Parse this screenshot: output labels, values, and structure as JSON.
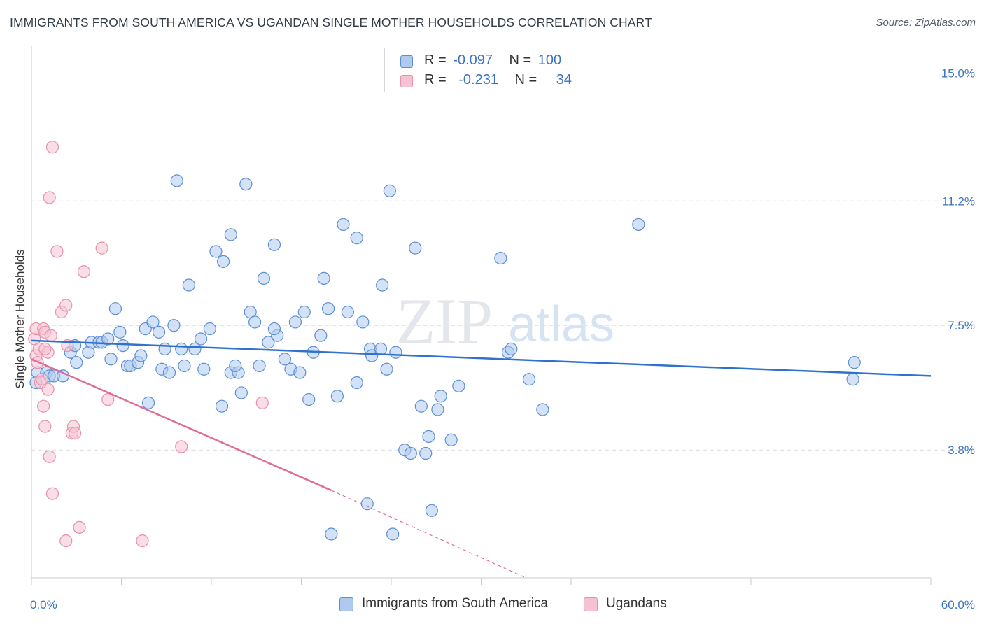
{
  "title": "IMMIGRANTS FROM SOUTH AMERICA VS UGANDAN SINGLE MOTHER HOUSEHOLDS CORRELATION CHART",
  "source": "Source: ZipAtlas.com",
  "watermark": {
    "zip": "ZIP",
    "atlas": "atlas"
  },
  "colors": {
    "blue_fill": "#aecbef",
    "blue_stroke": "#5b8fd4",
    "blue_line": "#2f72cc",
    "pink_fill": "#f5c2d2",
    "pink_stroke": "#e890ac",
    "pink_line": "#e06c98",
    "axis_text": "#3a73c2",
    "grid": "#d9dde2"
  },
  "legend": {
    "rows": [
      {
        "r_label": "R =",
        "r_value": "-0.097",
        "n_label": "N =",
        "n_value": "100"
      },
      {
        "r_label": "R =",
        "r_value": "-0.231",
        "n_label": "N =",
        "n_value": "34"
      }
    ]
  },
  "bottom_legend": {
    "series_a": "Immigrants from South America",
    "series_b": "Ugandans"
  },
  "chart_data": {
    "type": "scatter",
    "title": "IMMIGRANTS FROM SOUTH AMERICA VS UGANDAN SINGLE MOTHER HOUSEHOLDS CORRELATION CHART",
    "xlabel": "",
    "ylabel": "Single Mother Households",
    "xlim": [
      0,
      60
    ],
    "ylim": [
      0,
      15.8
    ],
    "x_tick_labels": [
      "0.0%",
      "60.0%"
    ],
    "y_ticks": [
      3.8,
      7.5,
      11.2,
      15.0
    ],
    "y_tick_labels": [
      "3.8%",
      "7.5%",
      "11.2%",
      "15.0%"
    ],
    "grid": "horizontal dashed",
    "series": [
      {
        "name": "Immigrants from South America",
        "points": [
          [
            0.3,
            5.8
          ],
          [
            0.4,
            6.1
          ],
          [
            1.0,
            6.1
          ],
          [
            1.2,
            6.0
          ],
          [
            1.5,
            6.0
          ],
          [
            2.1,
            6.0
          ],
          [
            2.6,
            6.7
          ],
          [
            2.9,
            6.9
          ],
          [
            3.0,
            6.4
          ],
          [
            3.8,
            6.7
          ],
          [
            4.0,
            7.0
          ],
          [
            4.5,
            7.0
          ],
          [
            4.7,
            7.0
          ],
          [
            5.1,
            7.1
          ],
          [
            5.3,
            6.5
          ],
          [
            5.6,
            8.0
          ],
          [
            5.9,
            7.3
          ],
          [
            6.1,
            6.9
          ],
          [
            6.4,
            6.3
          ],
          [
            6.6,
            6.3
          ],
          [
            7.1,
            6.4
          ],
          [
            7.3,
            6.6
          ],
          [
            7.6,
            7.4
          ],
          [
            7.8,
            5.2
          ],
          [
            8.1,
            7.6
          ],
          [
            8.5,
            7.3
          ],
          [
            8.7,
            6.2
          ],
          [
            8.9,
            6.8
          ],
          [
            9.5,
            7.5
          ],
          [
            9.7,
            11.8
          ],
          [
            10.0,
            6.8
          ],
          [
            10.2,
            6.3
          ],
          [
            10.5,
            8.7
          ],
          [
            10.9,
            6.8
          ],
          [
            11.3,
            7.1
          ],
          [
            11.5,
            6.2
          ],
          [
            11.9,
            7.4
          ],
          [
            12.3,
            9.7
          ],
          [
            12.8,
            9.4
          ],
          [
            12.7,
            5.1
          ],
          [
            13.3,
            6.1
          ],
          [
            13.3,
            10.2
          ],
          [
            13.8,
            6.1
          ],
          [
            14.0,
            5.5
          ],
          [
            14.3,
            11.7
          ],
          [
            14.6,
            7.9
          ],
          [
            14.9,
            7.6
          ],
          [
            15.2,
            6.3
          ],
          [
            15.5,
            8.9
          ],
          [
            15.8,
            7.0
          ],
          [
            16.2,
            9.9
          ],
          [
            16.4,
            7.2
          ],
          [
            16.9,
            6.5
          ],
          [
            17.3,
            6.2
          ],
          [
            17.6,
            7.6
          ],
          [
            17.9,
            6.1
          ],
          [
            18.2,
            7.9
          ],
          [
            18.5,
            5.3
          ],
          [
            18.8,
            6.7
          ],
          [
            19.3,
            7.2
          ],
          [
            19.5,
            8.9
          ],
          [
            19.8,
            8.0
          ],
          [
            20.4,
            5.4
          ],
          [
            20.8,
            10.5
          ],
          [
            21.1,
            7.9
          ],
          [
            21.7,
            5.8
          ],
          [
            21.7,
            10.1
          ],
          [
            22.1,
            7.6
          ],
          [
            22.4,
            2.2
          ],
          [
            22.6,
            6.8
          ],
          [
            22.7,
            6.6
          ],
          [
            23.3,
            6.8
          ],
          [
            23.4,
            8.7
          ],
          [
            23.7,
            6.2
          ],
          [
            23.9,
            11.5
          ],
          [
            24.3,
            6.7
          ],
          [
            24.9,
            3.8
          ],
          [
            25.3,
            3.7
          ],
          [
            25.6,
            9.8
          ],
          [
            26.0,
            5.1
          ],
          [
            26.3,
            3.7
          ],
          [
            26.5,
            4.2
          ],
          [
            27.1,
            5.0
          ],
          [
            27.3,
            5.4
          ],
          [
            28.0,
            4.1
          ],
          [
            28.5,
            5.7
          ],
          [
            31.3,
            9.5
          ],
          [
            31.8,
            6.7
          ],
          [
            32.0,
            6.8
          ],
          [
            33.2,
            5.9
          ],
          [
            34.1,
            5.0
          ],
          [
            20.0,
            1.3
          ],
          [
            24.1,
            1.3
          ],
          [
            26.7,
            2.0
          ],
          [
            40.5,
            10.5
          ],
          [
            54.8,
            5.9
          ],
          [
            54.9,
            6.4
          ],
          [
            13.6,
            6.3
          ],
          [
            16.2,
            7.4
          ],
          [
            9.2,
            6.1
          ]
        ],
        "trend": {
          "x": [
            0,
            60
          ],
          "y": [
            7.05,
            6.0
          ]
        }
      },
      {
        "name": "Ugandans",
        "points": [
          [
            0.2,
            7.1
          ],
          [
            0.3,
            7.4
          ],
          [
            0.3,
            6.6
          ],
          [
            0.4,
            6.4
          ],
          [
            0.5,
            6.8
          ],
          [
            0.6,
            5.8
          ],
          [
            0.7,
            5.9
          ],
          [
            0.8,
            5.1
          ],
          [
            0.8,
            7.4
          ],
          [
            0.9,
            7.3
          ],
          [
            0.9,
            4.5
          ],
          [
            1.1,
            6.7
          ],
          [
            1.1,
            5.6
          ],
          [
            1.2,
            3.6
          ],
          [
            1.2,
            11.3
          ],
          [
            1.3,
            7.2
          ],
          [
            1.4,
            12.8
          ],
          [
            1.4,
            2.5
          ],
          [
            1.7,
            9.7
          ],
          [
            2.0,
            7.9
          ],
          [
            2.3,
            8.1
          ],
          [
            2.3,
            1.1
          ],
          [
            2.4,
            6.9
          ],
          [
            2.7,
            4.3
          ],
          [
            2.8,
            4.5
          ],
          [
            2.9,
            4.3
          ],
          [
            3.2,
            1.5
          ],
          [
            3.5,
            9.1
          ],
          [
            4.7,
            9.8
          ],
          [
            5.1,
            5.3
          ],
          [
            7.4,
            1.1
          ],
          [
            10.0,
            3.9
          ],
          [
            15.4,
            5.2
          ],
          [
            0.9,
            6.8
          ]
        ],
        "trend": {
          "x": [
            0,
            20
          ],
          "y": [
            6.5,
            2.6
          ]
        },
        "trend_extension": {
          "x": [
            20,
            33
          ],
          "y": [
            2.6,
            0.0
          ]
        }
      }
    ]
  }
}
